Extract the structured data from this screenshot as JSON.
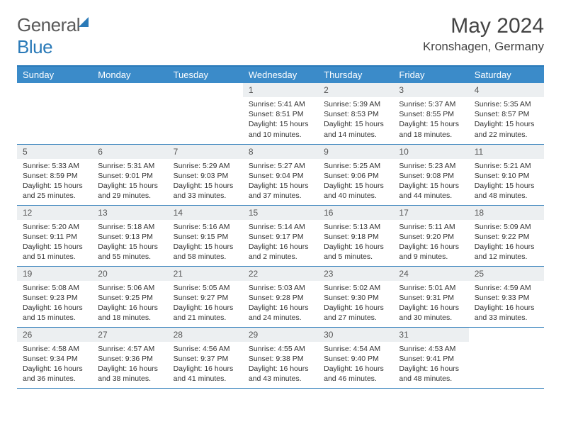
{
  "brand": {
    "part1": "General",
    "part2": "Blue"
  },
  "title": "May 2024",
  "location": "Kronshagen, Germany",
  "colors": {
    "header_bg": "#3b8bc9",
    "border": "#2a7ab8",
    "daynum_bg": "#eceff1",
    "text": "#333333"
  },
  "weekdays": [
    "Sunday",
    "Monday",
    "Tuesday",
    "Wednesday",
    "Thursday",
    "Friday",
    "Saturday"
  ],
  "weeks": [
    [
      {
        "n": "",
        "sr": "",
        "ss": "",
        "dl": "",
        "empty": true
      },
      {
        "n": "",
        "sr": "",
        "ss": "",
        "dl": "",
        "empty": true
      },
      {
        "n": "",
        "sr": "",
        "ss": "",
        "dl": "",
        "empty": true
      },
      {
        "n": "1",
        "sr": "Sunrise: 5:41 AM",
        "ss": "Sunset: 8:51 PM",
        "dl": "Daylight: 15 hours and 10 minutes."
      },
      {
        "n": "2",
        "sr": "Sunrise: 5:39 AM",
        "ss": "Sunset: 8:53 PM",
        "dl": "Daylight: 15 hours and 14 minutes."
      },
      {
        "n": "3",
        "sr": "Sunrise: 5:37 AM",
        "ss": "Sunset: 8:55 PM",
        "dl": "Daylight: 15 hours and 18 minutes."
      },
      {
        "n": "4",
        "sr": "Sunrise: 5:35 AM",
        "ss": "Sunset: 8:57 PM",
        "dl": "Daylight: 15 hours and 22 minutes."
      }
    ],
    [
      {
        "n": "5",
        "sr": "Sunrise: 5:33 AM",
        "ss": "Sunset: 8:59 PM",
        "dl": "Daylight: 15 hours and 25 minutes."
      },
      {
        "n": "6",
        "sr": "Sunrise: 5:31 AM",
        "ss": "Sunset: 9:01 PM",
        "dl": "Daylight: 15 hours and 29 minutes."
      },
      {
        "n": "7",
        "sr": "Sunrise: 5:29 AM",
        "ss": "Sunset: 9:03 PM",
        "dl": "Daylight: 15 hours and 33 minutes."
      },
      {
        "n": "8",
        "sr": "Sunrise: 5:27 AM",
        "ss": "Sunset: 9:04 PM",
        "dl": "Daylight: 15 hours and 37 minutes."
      },
      {
        "n": "9",
        "sr": "Sunrise: 5:25 AM",
        "ss": "Sunset: 9:06 PM",
        "dl": "Daylight: 15 hours and 40 minutes."
      },
      {
        "n": "10",
        "sr": "Sunrise: 5:23 AM",
        "ss": "Sunset: 9:08 PM",
        "dl": "Daylight: 15 hours and 44 minutes."
      },
      {
        "n": "11",
        "sr": "Sunrise: 5:21 AM",
        "ss": "Sunset: 9:10 PM",
        "dl": "Daylight: 15 hours and 48 minutes."
      }
    ],
    [
      {
        "n": "12",
        "sr": "Sunrise: 5:20 AM",
        "ss": "Sunset: 9:11 PM",
        "dl": "Daylight: 15 hours and 51 minutes."
      },
      {
        "n": "13",
        "sr": "Sunrise: 5:18 AM",
        "ss": "Sunset: 9:13 PM",
        "dl": "Daylight: 15 hours and 55 minutes."
      },
      {
        "n": "14",
        "sr": "Sunrise: 5:16 AM",
        "ss": "Sunset: 9:15 PM",
        "dl": "Daylight: 15 hours and 58 minutes."
      },
      {
        "n": "15",
        "sr": "Sunrise: 5:14 AM",
        "ss": "Sunset: 9:17 PM",
        "dl": "Daylight: 16 hours and 2 minutes."
      },
      {
        "n": "16",
        "sr": "Sunrise: 5:13 AM",
        "ss": "Sunset: 9:18 PM",
        "dl": "Daylight: 16 hours and 5 minutes."
      },
      {
        "n": "17",
        "sr": "Sunrise: 5:11 AM",
        "ss": "Sunset: 9:20 PM",
        "dl": "Daylight: 16 hours and 9 minutes."
      },
      {
        "n": "18",
        "sr": "Sunrise: 5:09 AM",
        "ss": "Sunset: 9:22 PM",
        "dl": "Daylight: 16 hours and 12 minutes."
      }
    ],
    [
      {
        "n": "19",
        "sr": "Sunrise: 5:08 AM",
        "ss": "Sunset: 9:23 PM",
        "dl": "Daylight: 16 hours and 15 minutes."
      },
      {
        "n": "20",
        "sr": "Sunrise: 5:06 AM",
        "ss": "Sunset: 9:25 PM",
        "dl": "Daylight: 16 hours and 18 minutes."
      },
      {
        "n": "21",
        "sr": "Sunrise: 5:05 AM",
        "ss": "Sunset: 9:27 PM",
        "dl": "Daylight: 16 hours and 21 minutes."
      },
      {
        "n": "22",
        "sr": "Sunrise: 5:03 AM",
        "ss": "Sunset: 9:28 PM",
        "dl": "Daylight: 16 hours and 24 minutes."
      },
      {
        "n": "23",
        "sr": "Sunrise: 5:02 AM",
        "ss": "Sunset: 9:30 PM",
        "dl": "Daylight: 16 hours and 27 minutes."
      },
      {
        "n": "24",
        "sr": "Sunrise: 5:01 AM",
        "ss": "Sunset: 9:31 PM",
        "dl": "Daylight: 16 hours and 30 minutes."
      },
      {
        "n": "25",
        "sr": "Sunrise: 4:59 AM",
        "ss": "Sunset: 9:33 PM",
        "dl": "Daylight: 16 hours and 33 minutes."
      }
    ],
    [
      {
        "n": "26",
        "sr": "Sunrise: 4:58 AM",
        "ss": "Sunset: 9:34 PM",
        "dl": "Daylight: 16 hours and 36 minutes."
      },
      {
        "n": "27",
        "sr": "Sunrise: 4:57 AM",
        "ss": "Sunset: 9:36 PM",
        "dl": "Daylight: 16 hours and 38 minutes."
      },
      {
        "n": "28",
        "sr": "Sunrise: 4:56 AM",
        "ss": "Sunset: 9:37 PM",
        "dl": "Daylight: 16 hours and 41 minutes."
      },
      {
        "n": "29",
        "sr": "Sunrise: 4:55 AM",
        "ss": "Sunset: 9:38 PM",
        "dl": "Daylight: 16 hours and 43 minutes."
      },
      {
        "n": "30",
        "sr": "Sunrise: 4:54 AM",
        "ss": "Sunset: 9:40 PM",
        "dl": "Daylight: 16 hours and 46 minutes."
      },
      {
        "n": "31",
        "sr": "Sunrise: 4:53 AM",
        "ss": "Sunset: 9:41 PM",
        "dl": "Daylight: 16 hours and 48 minutes."
      },
      {
        "n": "",
        "sr": "",
        "ss": "",
        "dl": "",
        "empty": true
      }
    ]
  ]
}
